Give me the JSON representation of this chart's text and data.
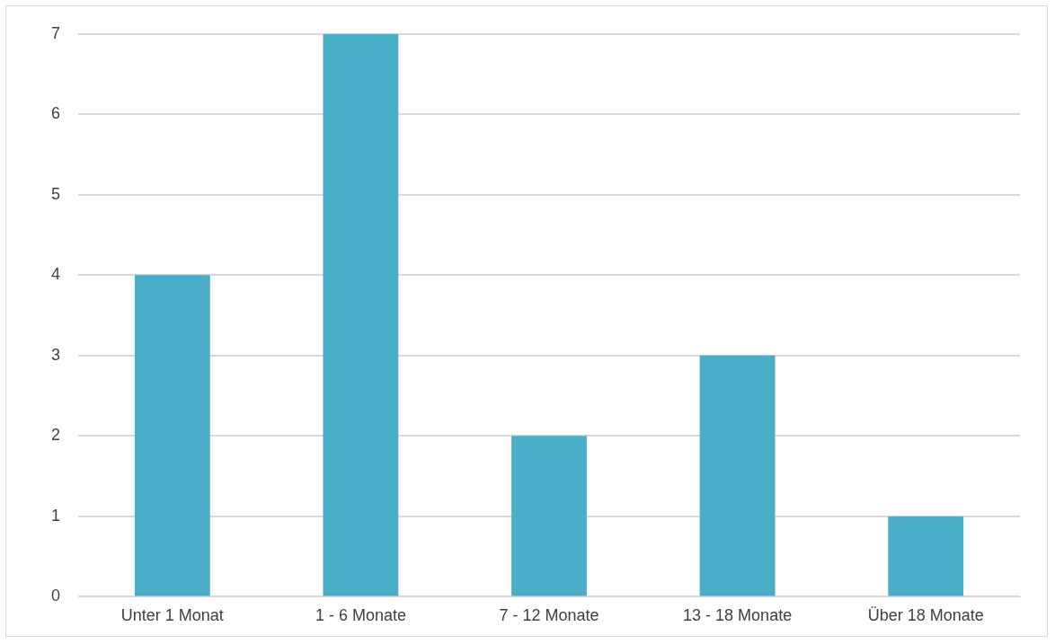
{
  "chart_data": {
    "type": "bar",
    "categories": [
      "Unter 1 Monat",
      "1 - 6 Monate",
      "7 - 12 Monate",
      "13 - 18 Monate",
      "Über 18 Monate"
    ],
    "values": [
      4,
      7,
      2,
      3,
      1
    ],
    "color": "#4aaec8",
    "ylim": [
      0,
      7
    ],
    "yticks": [
      0,
      1,
      2,
      3,
      4,
      5,
      6,
      7
    ],
    "grid": "y"
  }
}
